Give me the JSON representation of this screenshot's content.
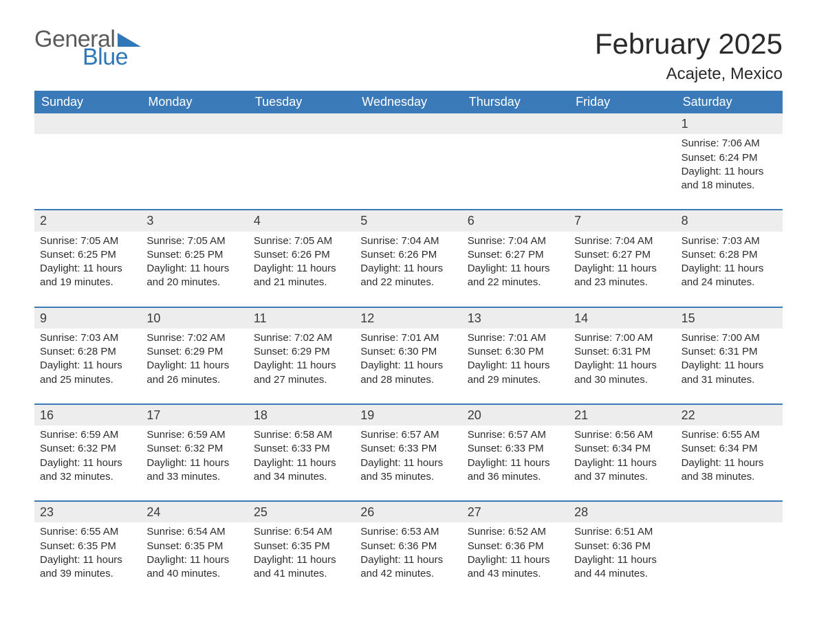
{
  "brand": {
    "word1": "General",
    "word2": "Blue",
    "triangle_color": "#2f77b6"
  },
  "title": "February 2025",
  "location": "Acajete, Mexico",
  "colors": {
    "header_bg": "#3a7ab9",
    "header_text": "#ffffff",
    "week_rule": "#3a7ab9",
    "daynum_bg": "#ededed",
    "body_text": "#2d2d2d",
    "page_bg": "#ffffff"
  },
  "day_names": [
    "Sunday",
    "Monday",
    "Tuesday",
    "Wednesday",
    "Thursday",
    "Friday",
    "Saturday"
  ],
  "weeks": [
    [
      null,
      null,
      null,
      null,
      null,
      null,
      {
        "n": "1",
        "sunrise": "7:06 AM",
        "sunset": "6:24 PM",
        "daylight": "11 hours and 18 minutes."
      }
    ],
    [
      {
        "n": "2",
        "sunrise": "7:05 AM",
        "sunset": "6:25 PM",
        "daylight": "11 hours and 19 minutes."
      },
      {
        "n": "3",
        "sunrise": "7:05 AM",
        "sunset": "6:25 PM",
        "daylight": "11 hours and 20 minutes."
      },
      {
        "n": "4",
        "sunrise": "7:05 AM",
        "sunset": "6:26 PM",
        "daylight": "11 hours and 21 minutes."
      },
      {
        "n": "5",
        "sunrise": "7:04 AM",
        "sunset": "6:26 PM",
        "daylight": "11 hours and 22 minutes."
      },
      {
        "n": "6",
        "sunrise": "7:04 AM",
        "sunset": "6:27 PM",
        "daylight": "11 hours and 22 minutes."
      },
      {
        "n": "7",
        "sunrise": "7:04 AM",
        "sunset": "6:27 PM",
        "daylight": "11 hours and 23 minutes."
      },
      {
        "n": "8",
        "sunrise": "7:03 AM",
        "sunset": "6:28 PM",
        "daylight": "11 hours and 24 minutes."
      }
    ],
    [
      {
        "n": "9",
        "sunrise": "7:03 AM",
        "sunset": "6:28 PM",
        "daylight": "11 hours and 25 minutes."
      },
      {
        "n": "10",
        "sunrise": "7:02 AM",
        "sunset": "6:29 PM",
        "daylight": "11 hours and 26 minutes."
      },
      {
        "n": "11",
        "sunrise": "7:02 AM",
        "sunset": "6:29 PM",
        "daylight": "11 hours and 27 minutes."
      },
      {
        "n": "12",
        "sunrise": "7:01 AM",
        "sunset": "6:30 PM",
        "daylight": "11 hours and 28 minutes."
      },
      {
        "n": "13",
        "sunrise": "7:01 AM",
        "sunset": "6:30 PM",
        "daylight": "11 hours and 29 minutes."
      },
      {
        "n": "14",
        "sunrise": "7:00 AM",
        "sunset": "6:31 PM",
        "daylight": "11 hours and 30 minutes."
      },
      {
        "n": "15",
        "sunrise": "7:00 AM",
        "sunset": "6:31 PM",
        "daylight": "11 hours and 31 minutes."
      }
    ],
    [
      {
        "n": "16",
        "sunrise": "6:59 AM",
        "sunset": "6:32 PM",
        "daylight": "11 hours and 32 minutes."
      },
      {
        "n": "17",
        "sunrise": "6:59 AM",
        "sunset": "6:32 PM",
        "daylight": "11 hours and 33 minutes."
      },
      {
        "n": "18",
        "sunrise": "6:58 AM",
        "sunset": "6:33 PM",
        "daylight": "11 hours and 34 minutes."
      },
      {
        "n": "19",
        "sunrise": "6:57 AM",
        "sunset": "6:33 PM",
        "daylight": "11 hours and 35 minutes."
      },
      {
        "n": "20",
        "sunrise": "6:57 AM",
        "sunset": "6:33 PM",
        "daylight": "11 hours and 36 minutes."
      },
      {
        "n": "21",
        "sunrise": "6:56 AM",
        "sunset": "6:34 PM",
        "daylight": "11 hours and 37 minutes."
      },
      {
        "n": "22",
        "sunrise": "6:55 AM",
        "sunset": "6:34 PM",
        "daylight": "11 hours and 38 minutes."
      }
    ],
    [
      {
        "n": "23",
        "sunrise": "6:55 AM",
        "sunset": "6:35 PM",
        "daylight": "11 hours and 39 minutes."
      },
      {
        "n": "24",
        "sunrise": "6:54 AM",
        "sunset": "6:35 PM",
        "daylight": "11 hours and 40 minutes."
      },
      {
        "n": "25",
        "sunrise": "6:54 AM",
        "sunset": "6:35 PM",
        "daylight": "11 hours and 41 minutes."
      },
      {
        "n": "26",
        "sunrise": "6:53 AM",
        "sunset": "6:36 PM",
        "daylight": "11 hours and 42 minutes."
      },
      {
        "n": "27",
        "sunrise": "6:52 AM",
        "sunset": "6:36 PM",
        "daylight": "11 hours and 43 minutes."
      },
      {
        "n": "28",
        "sunrise": "6:51 AM",
        "sunset": "6:36 PM",
        "daylight": "11 hours and 44 minutes."
      },
      null
    ]
  ],
  "labels": {
    "sunrise": "Sunrise: ",
    "sunset": "Sunset: ",
    "daylight": "Daylight: "
  }
}
